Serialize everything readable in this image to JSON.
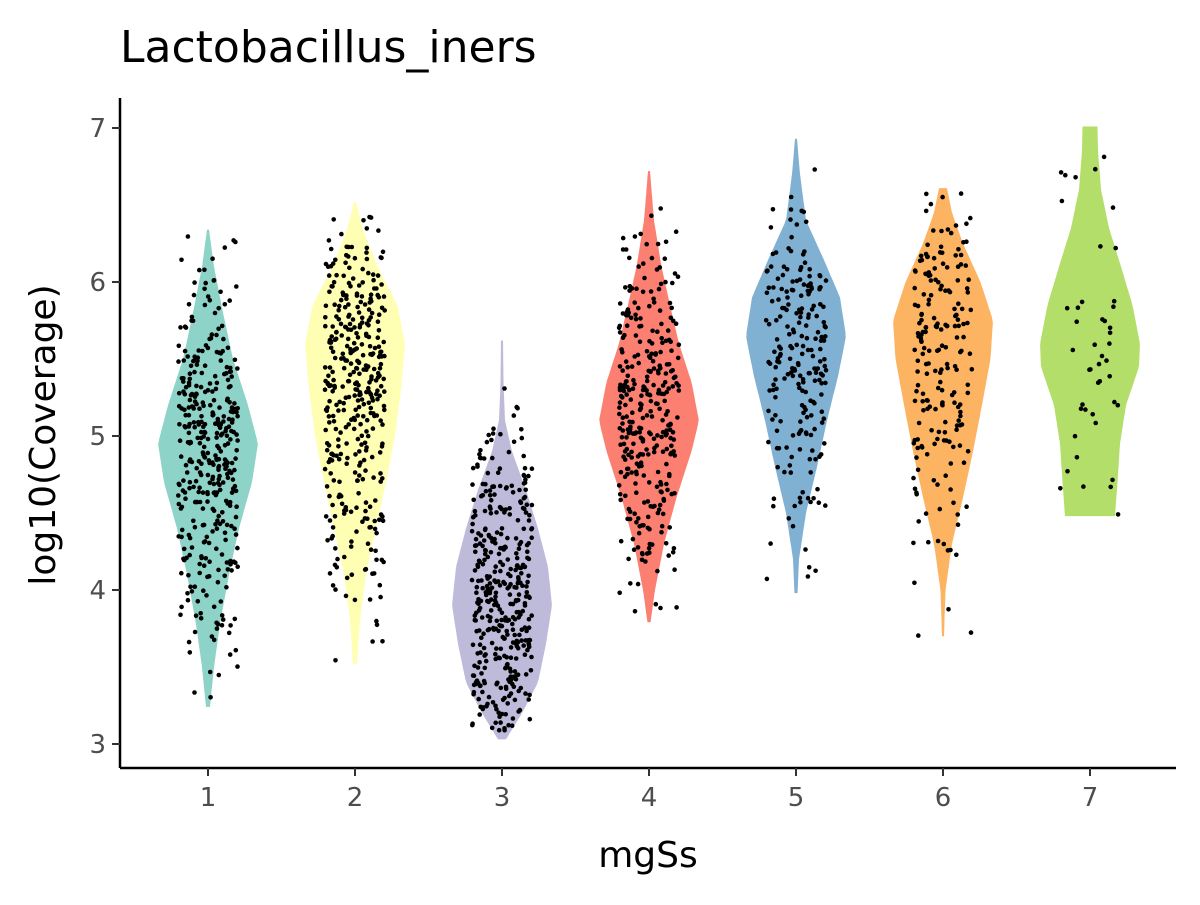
{
  "chart_data": {
    "type": "violin",
    "title": "Lactobacillus_iners",
    "xlabel": "mgSs",
    "ylabel": "log10(Coverage)",
    "ylim": [
      2.85,
      7.2
    ],
    "yticks": [
      3,
      4,
      5,
      6,
      7
    ],
    "grid": false,
    "legend": "none",
    "categories": [
      "1",
      "2",
      "3",
      "4",
      "5",
      "6",
      "7"
    ],
    "groups": [
      {
        "category": "1",
        "color": "#8DD3C7",
        "min": 3.24,
        "max": 6.34,
        "n": 380,
        "density": [
          [
            3.24,
            0.04
          ],
          [
            3.5,
            0.12
          ],
          [
            3.8,
            0.25
          ],
          [
            4.1,
            0.42
          ],
          [
            4.4,
            0.62
          ],
          [
            4.7,
            0.88
          ],
          [
            4.95,
            1.0
          ],
          [
            5.2,
            0.8
          ],
          [
            5.5,
            0.5
          ],
          [
            5.8,
            0.3
          ],
          [
            6.1,
            0.12
          ],
          [
            6.34,
            0.02
          ]
        ]
      },
      {
        "category": "2",
        "color": "#FFFFB3",
        "min": 3.52,
        "max": 6.52,
        "n": 380,
        "density": [
          [
            3.52,
            0.04
          ],
          [
            3.8,
            0.1
          ],
          [
            4.1,
            0.22
          ],
          [
            4.4,
            0.42
          ],
          [
            4.7,
            0.62
          ],
          [
            5.0,
            0.8
          ],
          [
            5.3,
            0.92
          ],
          [
            5.6,
            1.0
          ],
          [
            5.85,
            0.85
          ],
          [
            6.1,
            0.45
          ],
          [
            6.35,
            0.15
          ],
          [
            6.52,
            0.02
          ]
        ]
      },
      {
        "category": "3",
        "color": "#BEBADA",
        "min": 3.03,
        "max": 5.62,
        "n": 400,
        "density": [
          [
            3.03,
            0.08
          ],
          [
            3.2,
            0.4
          ],
          [
            3.4,
            0.72
          ],
          [
            3.65,
            0.88
          ],
          [
            3.9,
            1.0
          ],
          [
            4.15,
            0.92
          ],
          [
            4.4,
            0.72
          ],
          [
            4.65,
            0.48
          ],
          [
            4.9,
            0.2
          ],
          [
            5.1,
            0.06
          ],
          [
            5.35,
            0.03
          ],
          [
            5.62,
            0.02
          ]
        ]
      },
      {
        "category": "4",
        "color": "#FB8072",
        "min": 3.79,
        "max": 6.72,
        "n": 330,
        "density": [
          [
            3.79,
            0.03
          ],
          [
            4.0,
            0.12
          ],
          [
            4.3,
            0.3
          ],
          [
            4.6,
            0.55
          ],
          [
            4.9,
            0.85
          ],
          [
            5.1,
            1.0
          ],
          [
            5.35,
            0.85
          ],
          [
            5.6,
            0.6
          ],
          [
            5.85,
            0.42
          ],
          [
            6.1,
            0.25
          ],
          [
            6.4,
            0.1
          ],
          [
            6.72,
            0.02
          ]
        ]
      },
      {
        "category": "5",
        "color": "#80B1D3",
        "min": 3.98,
        "max": 6.93,
        "n": 220,
        "density": [
          [
            3.98,
            0.03
          ],
          [
            4.2,
            0.06
          ],
          [
            4.5,
            0.2
          ],
          [
            4.8,
            0.42
          ],
          [
            5.1,
            0.62
          ],
          [
            5.4,
            0.85
          ],
          [
            5.65,
            1.0
          ],
          [
            5.9,
            0.88
          ],
          [
            6.15,
            0.55
          ],
          [
            6.4,
            0.2
          ],
          [
            6.7,
            0.08
          ],
          [
            6.93,
            0.02
          ]
        ]
      },
      {
        "category": "6",
        "color": "#FDB462",
        "min": 3.7,
        "max": 6.61,
        "n": 200,
        "density": [
          [
            3.7,
            0.02
          ],
          [
            4.0,
            0.05
          ],
          [
            4.3,
            0.18
          ],
          [
            4.6,
            0.4
          ],
          [
            4.9,
            0.6
          ],
          [
            5.2,
            0.78
          ],
          [
            5.5,
            0.95
          ],
          [
            5.75,
            1.0
          ],
          [
            6.0,
            0.75
          ],
          [
            6.25,
            0.4
          ],
          [
            6.45,
            0.18
          ],
          [
            6.61,
            0.08
          ]
        ]
      },
      {
        "category": "7",
        "color": "#B3DE69",
        "min": 4.48,
        "max": 7.01,
        "n": 45,
        "density": [
          [
            4.48,
            0.5
          ],
          [
            4.7,
            0.55
          ],
          [
            4.95,
            0.6
          ],
          [
            5.2,
            0.72
          ],
          [
            5.45,
            0.98
          ],
          [
            5.6,
            1.0
          ],
          [
            5.85,
            0.85
          ],
          [
            6.1,
            0.62
          ],
          [
            6.35,
            0.38
          ],
          [
            6.6,
            0.22
          ],
          [
            6.85,
            0.16
          ],
          [
            7.01,
            0.15
          ]
        ]
      }
    ]
  }
}
